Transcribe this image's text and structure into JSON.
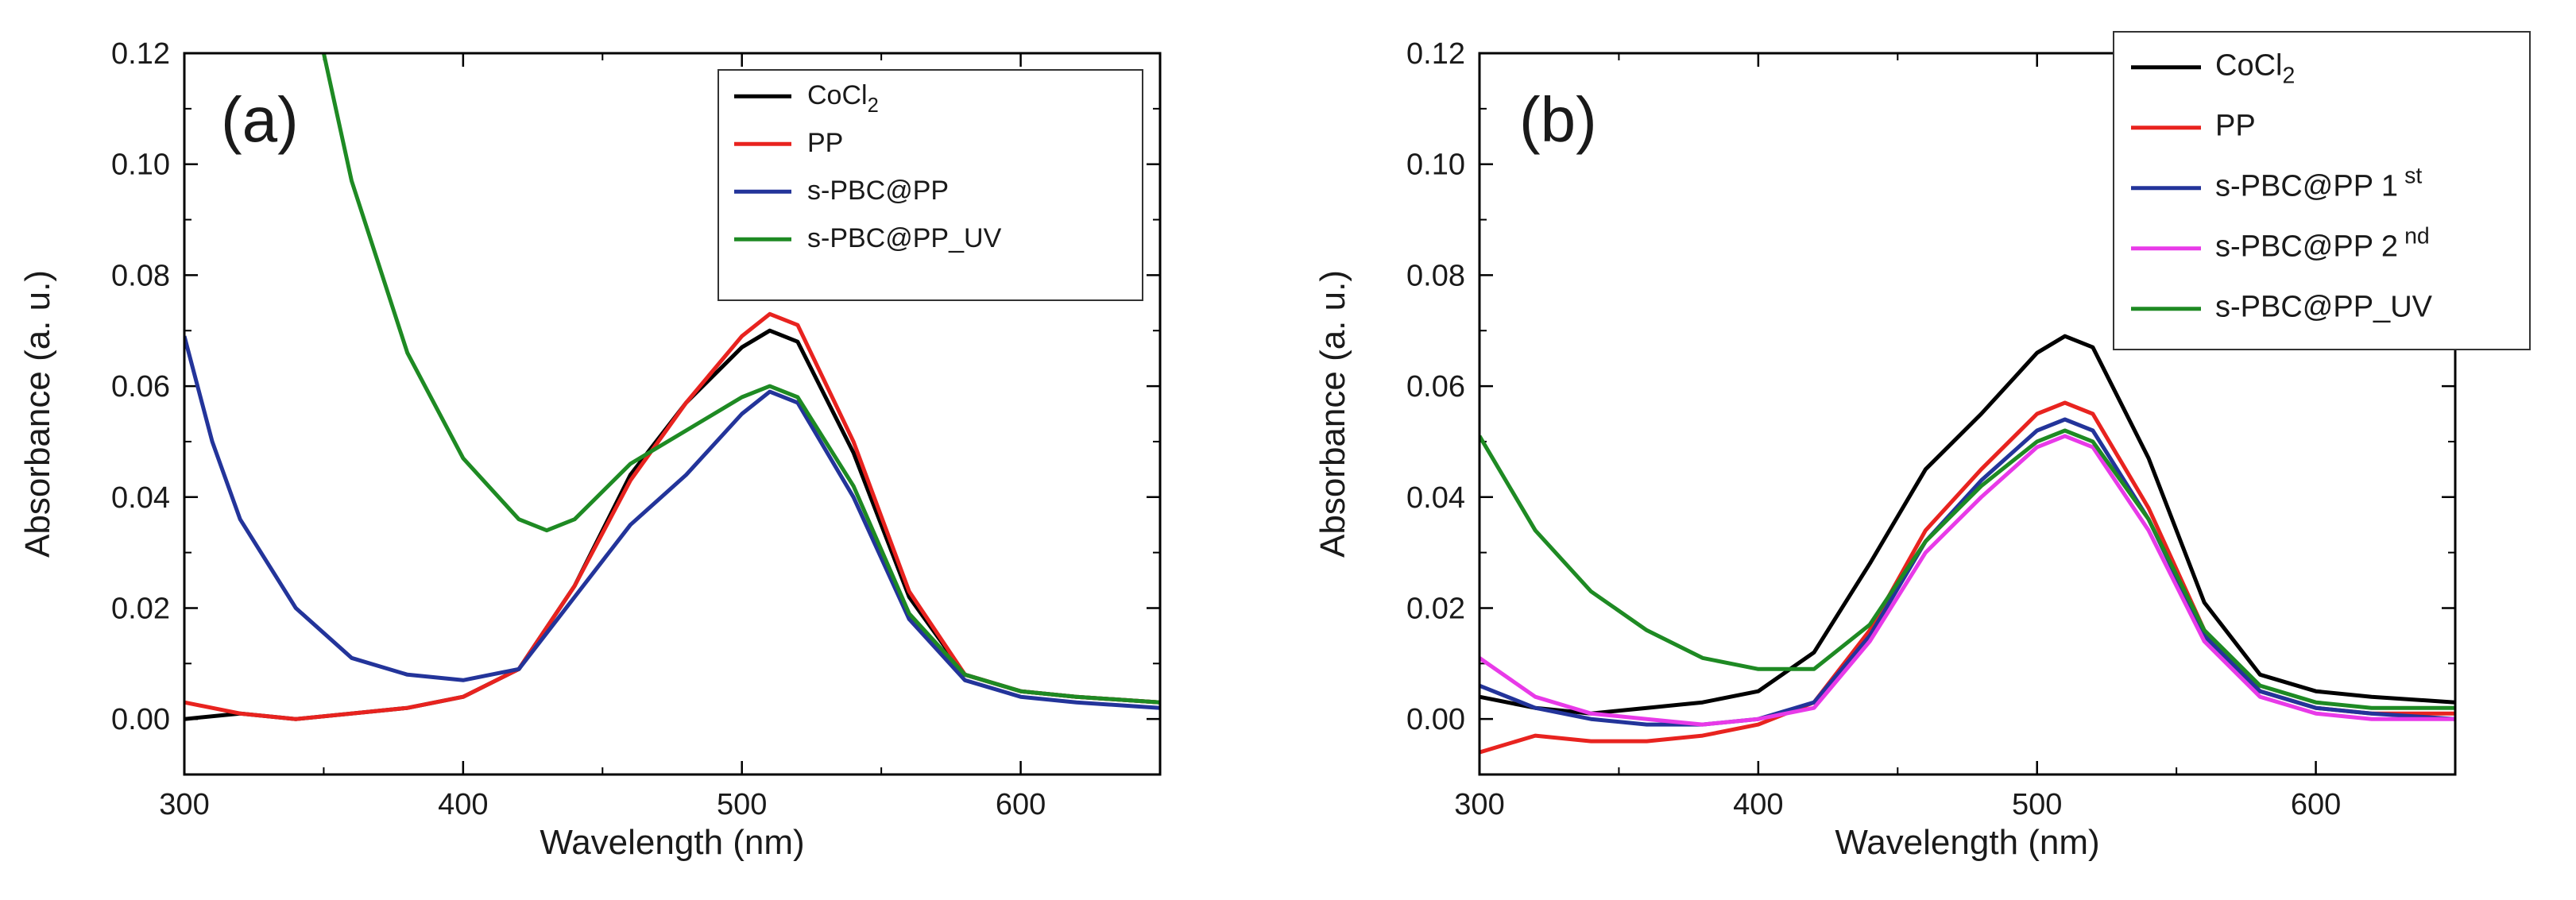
{
  "chart_data": [
    {
      "type": "line",
      "panel_label": "(a)",
      "xlabel": "Wavelength (nm)",
      "ylabel": "Absorbance (a. u.)",
      "xlim": [
        300,
        650
      ],
      "ylim": [
        -0.01,
        0.12
      ],
      "x_ticks": [
        300,
        400,
        500,
        600
      ],
      "x_tick_labels": [
        "300",
        "400",
        "500",
        "600"
      ],
      "y_ticks": [
        0.0,
        0.02,
        0.04,
        0.06,
        0.08,
        0.1,
        0.12
      ],
      "y_tick_labels": [
        "0.00",
        "0.02",
        "0.04",
        "0.06",
        "0.08",
        "0.10",
        "0.12"
      ],
      "legend_position": "top-right",
      "series": [
        {
          "name": "CoCl2",
          "legend": {
            "base": "CoCl",
            "sub": "2"
          },
          "color": "#000000",
          "x": [
            300,
            320,
            340,
            360,
            380,
            400,
            420,
            440,
            460,
            480,
            500,
            510,
            520,
            540,
            560,
            580,
            600,
            620,
            650
          ],
          "y": [
            0.0,
            0.001,
            0.0,
            0.001,
            0.002,
            0.004,
            0.009,
            0.024,
            0.044,
            0.057,
            0.067,
            0.07,
            0.068,
            0.048,
            0.022,
            0.008,
            0.005,
            0.004,
            0.003
          ]
        },
        {
          "name": "PP",
          "legend": {
            "base": "PP",
            "sub": ""
          },
          "color": "#e8231f",
          "x": [
            300,
            320,
            340,
            360,
            380,
            400,
            420,
            440,
            460,
            480,
            500,
            510,
            520,
            540,
            560,
            580,
            600,
            620,
            650
          ],
          "y": [
            0.003,
            0.001,
            0.0,
            0.001,
            0.002,
            0.004,
            0.009,
            0.024,
            0.043,
            0.057,
            0.069,
            0.073,
            0.071,
            0.05,
            0.023,
            0.008,
            0.005,
            0.004,
            0.003
          ]
        },
        {
          "name": "s-PBC@PP",
          "legend": {
            "base": "s-PBC@PP",
            "sub": ""
          },
          "color": "#23349a",
          "x": [
            300,
            310,
            320,
            340,
            360,
            380,
            400,
            420,
            440,
            460,
            480,
            500,
            510,
            520,
            540,
            560,
            580,
            600,
            620,
            650
          ],
          "y": [
            0.069,
            0.05,
            0.036,
            0.02,
            0.011,
            0.008,
            0.007,
            0.009,
            0.022,
            0.035,
            0.044,
            0.055,
            0.059,
            0.057,
            0.04,
            0.018,
            0.007,
            0.004,
            0.003,
            0.002
          ]
        },
        {
          "name": "s-PBC@PP_UV",
          "legend": {
            "base": "s-PBC@PP_UV",
            "sub": ""
          },
          "color": "#1e8a23",
          "x": [
            350,
            360,
            380,
            400,
            420,
            430,
            440,
            460,
            470,
            480,
            500,
            510,
            520,
            540,
            560,
            580,
            600,
            620,
            650
          ],
          "y": [
            0.12,
            0.097,
            0.066,
            0.047,
            0.036,
            0.034,
            0.036,
            0.046,
            0.049,
            0.052,
            0.058,
            0.06,
            0.058,
            0.042,
            0.019,
            0.008,
            0.005,
            0.004,
            0.003
          ]
        }
      ]
    },
    {
      "type": "line",
      "panel_label": "(b)",
      "xlabel": "Wavelength (nm)",
      "ylabel": "Absorbance (a. u.)",
      "xlim": [
        300,
        650
      ],
      "ylim": [
        -0.01,
        0.12
      ],
      "x_ticks": [
        300,
        400,
        500,
        600
      ],
      "x_tick_labels": [
        "300",
        "400",
        "500",
        "600"
      ],
      "y_ticks": [
        0.0,
        0.02,
        0.04,
        0.06,
        0.08,
        0.1,
        0.12
      ],
      "y_tick_labels": [
        "0.00",
        "0.02",
        "0.04",
        "0.06",
        "0.08",
        "0.10",
        "0.12"
      ],
      "legend_position": "top-right",
      "series": [
        {
          "name": "CoCl2",
          "legend": {
            "base": "CoCl",
            "sub": "2"
          },
          "color": "#000000",
          "x": [
            300,
            320,
            340,
            360,
            380,
            400,
            420,
            440,
            460,
            480,
            500,
            510,
            520,
            540,
            560,
            580,
            600,
            620,
            650
          ],
          "y": [
            0.004,
            0.002,
            0.001,
            0.002,
            0.003,
            0.005,
            0.012,
            0.028,
            0.045,
            0.055,
            0.066,
            0.069,
            0.067,
            0.047,
            0.021,
            0.008,
            0.005,
            0.004,
            0.003
          ]
        },
        {
          "name": "PP",
          "legend": {
            "base": "PP",
            "sub": ""
          },
          "color": "#e8231f",
          "x": [
            300,
            320,
            340,
            360,
            380,
            400,
            420,
            440,
            460,
            480,
            500,
            510,
            520,
            540,
            560,
            580,
            600,
            620,
            650
          ],
          "y": [
            -0.006,
            -0.003,
            -0.004,
            -0.004,
            -0.003,
            -0.001,
            0.003,
            0.016,
            0.034,
            0.045,
            0.055,
            0.057,
            0.055,
            0.038,
            0.016,
            0.005,
            0.002,
            0.001,
            0.001
          ]
        },
        {
          "name": "s-PBC@PP 1st",
          "legend": {
            "base": "s-PBC@PP 1",
            "sup": "st"
          },
          "color": "#23349a",
          "x": [
            300,
            320,
            340,
            360,
            380,
            400,
            420,
            440,
            460,
            480,
            500,
            510,
            520,
            540,
            560,
            580,
            600,
            620,
            650
          ],
          "y": [
            0.006,
            0.002,
            0.0,
            -0.001,
            -0.001,
            0.0,
            0.003,
            0.015,
            0.032,
            0.043,
            0.052,
            0.054,
            0.052,
            0.036,
            0.015,
            0.005,
            0.002,
            0.001,
            0.0
          ]
        },
        {
          "name": "s-PBC@PP 2nd",
          "legend": {
            "base": "s-PBC@PP 2",
            "sup": "nd"
          },
          "color": "#e83ae8",
          "x": [
            300,
            320,
            340,
            360,
            380,
            400,
            420,
            440,
            460,
            480,
            500,
            510,
            520,
            540,
            560,
            580,
            600,
            620,
            650
          ],
          "y": [
            0.011,
            0.004,
            0.001,
            0.0,
            -0.001,
            0.0,
            0.002,
            0.014,
            0.03,
            0.04,
            0.049,
            0.051,
            0.049,
            0.034,
            0.014,
            0.004,
            0.001,
            0.0,
            0.0
          ]
        },
        {
          "name": "s-PBC@PP_UV",
          "legend": {
            "base": "s-PBC@PP_UV",
            "sub": ""
          },
          "color": "#1e8a23",
          "x": [
            300,
            320,
            340,
            360,
            380,
            400,
            420,
            440,
            460,
            480,
            500,
            510,
            520,
            540,
            560,
            580,
            600,
            620,
            650
          ],
          "y": [
            0.051,
            0.034,
            0.023,
            0.016,
            0.011,
            0.009,
            0.009,
            0.017,
            0.032,
            0.042,
            0.05,
            0.052,
            0.05,
            0.036,
            0.016,
            0.006,
            0.003,
            0.002,
            0.002
          ]
        }
      ]
    }
  ]
}
